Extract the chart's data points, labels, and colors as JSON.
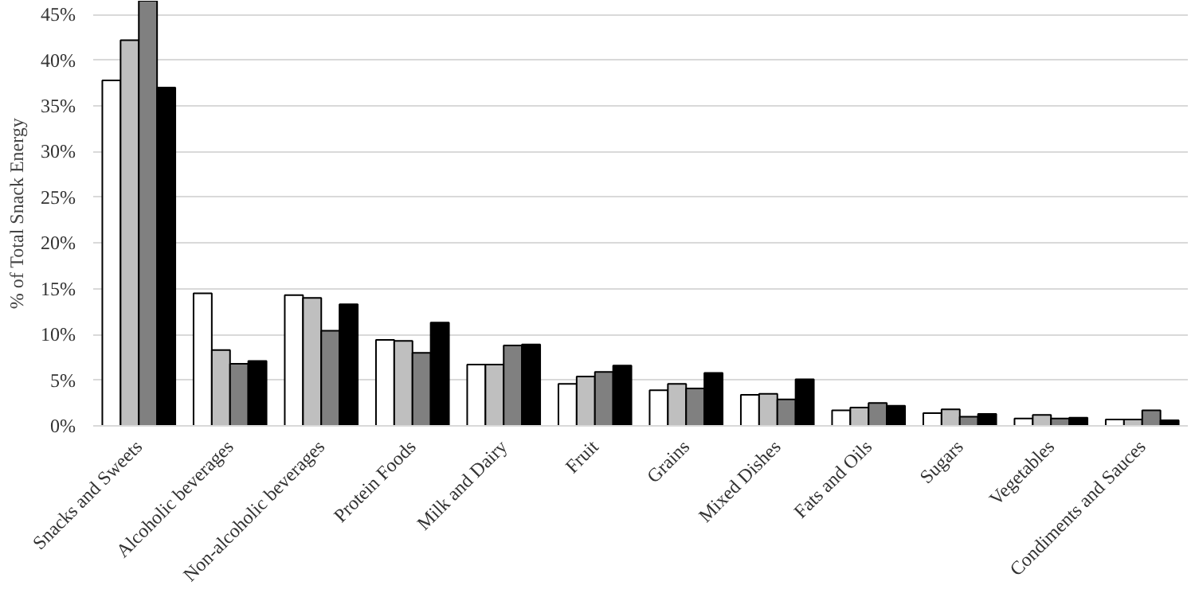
{
  "chart_data": {
    "type": "bar",
    "ylabel": "% of Total Snack Energy",
    "categories": [
      "Snacks and Sweets",
      "Alcoholic beverages",
      "Non-alcoholic beverages",
      "Protein Foods",
      "Milk and Dairy",
      "Fruit",
      "Grains",
      "Mixed Dishes",
      "Fats and Oils",
      "Sugars",
      "Vegetables",
      "Condiments and Sauces"
    ],
    "series": [
      {
        "color": "#ffffff",
        "values": [
          37.8,
          14.5,
          14.3,
          9.4,
          6.7,
          4.6,
          3.9,
          3.4,
          1.7,
          1.4,
          0.8,
          0.7
        ]
      },
      {
        "color": "#bfbfbf",
        "values": [
          42.2,
          8.3,
          14.0,
          9.3,
          6.7,
          5.4,
          4.6,
          3.5,
          2.0,
          1.8,
          1.2,
          0.7
        ]
      },
      {
        "color": "#808080",
        "values": [
          46.5,
          6.8,
          10.4,
          8.0,
          8.8,
          5.9,
          4.1,
          2.9,
          2.5,
          1.0,
          0.8,
          1.7
        ]
      },
      {
        "color": "#000000",
        "values": [
          37.0,
          7.1,
          13.3,
          11.3,
          8.9,
          6.6,
          5.8,
          5.1,
          2.2,
          1.3,
          0.9,
          0.6
        ]
      }
    ],
    "ylim": [
      0,
      46.5
    ],
    "yticks": [
      {
        "value": 0,
        "label": "0%"
      },
      {
        "value": 5,
        "label": "5%"
      },
      {
        "value": 10,
        "label": "10%"
      },
      {
        "value": 15,
        "label": "15%"
      },
      {
        "value": 20,
        "label": "20%"
      },
      {
        "value": 25,
        "label": "25%"
      },
      {
        "value": 30,
        "label": "30%"
      },
      {
        "value": 35,
        "label": "35%"
      },
      {
        "value": 40,
        "label": "40%"
      },
      {
        "value": 45,
        "label": "45%"
      }
    ],
    "grid": "y"
  }
}
